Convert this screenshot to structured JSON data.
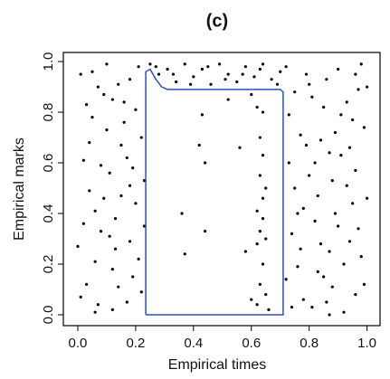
{
  "chart_data": {
    "type": "scatter",
    "title": "(c)",
    "x_label": "Empirical times",
    "y_label": "Empirical marks",
    "xlim": [
      -0.05,
      1.045
    ],
    "ylim": [
      -0.043,
      1.036
    ],
    "xticks": [
      {
        "value": 0,
        "label": "0.0"
      },
      {
        "value": 0.2,
        "label": "0.2"
      },
      {
        "value": 0.4,
        "label": "0.4"
      },
      {
        "value": 0.6,
        "label": "0.6"
      },
      {
        "value": 0.8,
        "label": "0.8"
      },
      {
        "value": 1,
        "label": "1.0"
      }
    ],
    "yticks": [
      {
        "value": 0,
        "label": "0.0"
      },
      {
        "value": 0.2,
        "label": "0.2"
      },
      {
        "value": 0.4,
        "label": "0.4"
      },
      {
        "value": 0.6,
        "label": "0.6"
      },
      {
        "value": 0.8,
        "label": "0.8"
      },
      {
        "value": 1,
        "label": "1.0"
      }
    ],
    "series": [
      {
        "type": "scatter",
        "color": "#000000",
        "x": [
          0.01,
          0.03,
          0.05,
          0.08,
          0.11,
          0.14,
          0.17,
          0.2,
          0.22,
          0.02,
          0.06,
          0.09,
          0.12,
          0.15,
          0.18,
          0.21,
          0.04,
          0.07,
          0.1,
          0.13,
          0.16,
          0.19,
          0.23,
          0.0,
          0.05,
          0.08,
          0.12,
          0.15,
          0.18,
          0.22,
          0.03,
          0.06,
          0.1,
          0.13,
          0.17,
          0.2,
          0.01,
          0.09,
          0.14,
          0.19,
          0.23,
          0.04,
          0.11,
          0.16,
          0.21,
          0.07,
          0.02,
          0.18,
          0.12,
          0.06,
          0.72,
          0.75,
          0.78,
          0.81,
          0.84,
          0.87,
          0.9,
          0.93,
          0.96,
          0.99,
          0.73,
          0.76,
          0.79,
          0.82,
          0.85,
          0.88,
          0.91,
          0.94,
          0.97,
          1.0,
          0.74,
          0.77,
          0.8,
          0.83,
          0.86,
          0.89,
          0.92,
          0.95,
          0.98,
          0.72,
          0.75,
          0.78,
          0.81,
          0.84,
          0.87,
          0.9,
          0.93,
          0.96,
          0.99,
          0.73,
          0.76,
          0.8,
          0.83,
          0.86,
          0.89,
          0.92,
          0.95,
          0.98,
          0.77,
          0.82,
          0.88,
          0.94,
          0.97,
          0.74,
          0.85,
          0.91,
          1.0,
          0.79,
          0.87,
          0.96,
          0.25,
          0.28,
          0.31,
          0.34,
          0.37,
          0.4,
          0.43,
          0.46,
          0.49,
          0.52,
          0.55,
          0.58,
          0.61,
          0.64,
          0.67,
          0.7,
          0.33,
          0.45,
          0.57,
          0.69,
          0.39,
          0.51,
          0.63,
          0.27,
          0.43,
          0.42,
          0.44,
          0.36,
          0.44,
          0.37,
          0.52,
          0.56,
          0.58,
          0.6,
          0.62,
          0.64,
          0.63,
          0.64,
          0.63,
          0.65,
          0.64,
          0.62,
          0.64,
          0.63,
          0.65,
          0.62,
          0.64,
          0.63,
          0.65,
          0.62,
          0.66,
          0.6
        ],
        "values": [
          0.95,
          0.12,
          0.78,
          0.33,
          0.56,
          0.91,
          0.05,
          0.44,
          0.7,
          0.61,
          0.21,
          0.87,
          0.02,
          0.67,
          0.29,
          0.98,
          0.49,
          0.04,
          0.73,
          0.38,
          0.84,
          0.15,
          0.53,
          0.27,
          0.96,
          0.59,
          0.18,
          0.47,
          0.93,
          0.09,
          0.83,
          0.41,
          0.99,
          0.26,
          0.62,
          0.81,
          0.07,
          0.46,
          0.11,
          0.58,
          0.35,
          0.68,
          0.31,
          0.76,
          0.22,
          0.9,
          0.36,
          0.51,
          0.85,
          0.01,
          0.14,
          0.88,
          0.42,
          0.03,
          0.69,
          0.25,
          0.97,
          0.51,
          0.08,
          0.74,
          0.6,
          0.19,
          0.95,
          0.37,
          0.82,
          0.11,
          0.63,
          0.29,
          0.89,
          0.46,
          0.32,
          0.71,
          0.55,
          0.17,
          0.93,
          0.4,
          0.01,
          0.77,
          0.23,
          0.98,
          0.5,
          0.06,
          0.86,
          0.28,
          0.64,
          0.35,
          0.84,
          0.57,
          0.12,
          0.79,
          0.4,
          0.91,
          0.47,
          0.05,
          0.72,
          0.2,
          0.44,
          0.99,
          0.26,
          0.6,
          0.53,
          0.66,
          0.34,
          0.03,
          0.15,
          0.79,
          0.9,
          0.67,
          0.0,
          0.95,
          0.99,
          0.95,
          0.97,
          0.92,
          0.99,
          0.94,
          0.97,
          0.91,
          0.99,
          0.95,
          0.92,
          0.98,
          0.94,
          0.99,
          0.93,
          0.96,
          0.95,
          0.98,
          0.95,
          0.91,
          0.91,
          0.93,
          0.97,
          0.98,
          0.79,
          0.67,
          0.6,
          0.4,
          0.33,
          0.24,
          0.85,
          0.66,
          0.25,
          0.87,
          0.82,
          0.8,
          0.7,
          0.63,
          0.55,
          0.5,
          0.46,
          0.41,
          0.38,
          0.33,
          0.3,
          0.28,
          0.2,
          0.12,
          0.08,
          0.04,
          0.02,
          0.06
        ]
      },
      {
        "type": "line",
        "color": "#2b4fc4",
        "x": [
          0.235,
          0.235,
          0.25,
          0.27,
          0.29,
          0.31,
          0.7,
          0.71,
          0.71,
          0.235
        ],
        "values": [
          0,
          0.96,
          0.97,
          0.93,
          0.9,
          0.89,
          0.89,
          0.88,
          0,
          0
        ]
      }
    ]
  }
}
